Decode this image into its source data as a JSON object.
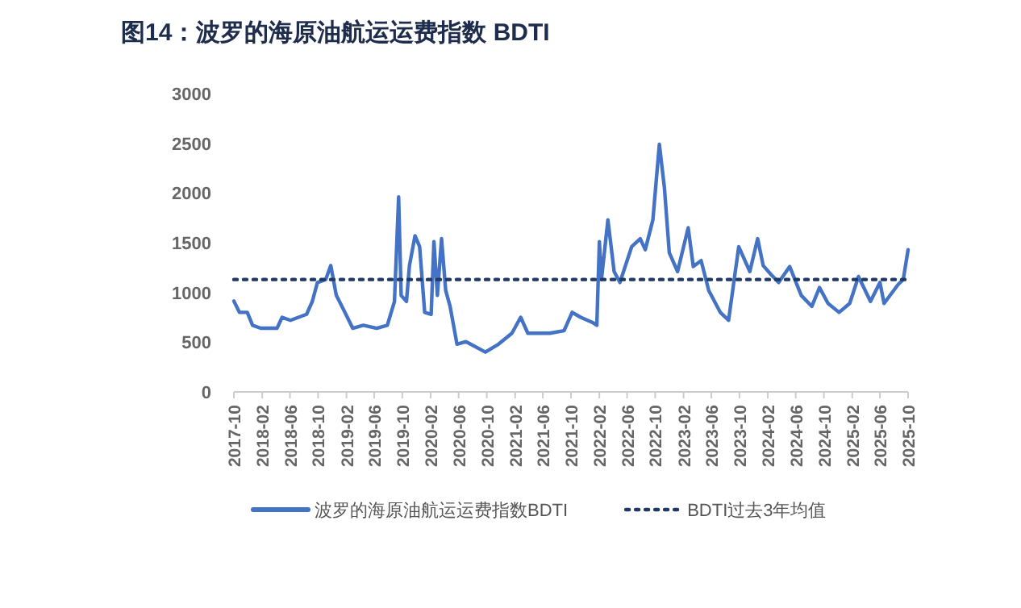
{
  "chart_data": {
    "type": "line",
    "title": "图14：波罗的海原油航运运费指数 BDTI",
    "series": [
      {
        "name": "波罗的海原油航运运费指数BDTI",
        "color": "#4472c4",
        "line_style": "solid",
        "x": [
          "2017-10-01",
          "2017-10-25",
          "2017-11-28",
          "2017-12-21",
          "2018-01-25",
          "2018-04-06",
          "2018-04-28",
          "2018-06-03",
          "2018-08-12",
          "2018-09-06",
          "2018-09-28",
          "2018-11-03",
          "2018-11-25",
          "2018-12-19",
          "2019-01-25",
          "2019-02-28",
          "2019-04-15",
          "2019-06-12",
          "2019-07-28",
          "2019-08-28",
          "2019-09-15",
          "2019-09-26",
          "2019-10-19",
          "2019-11-01",
          "2019-11-25",
          "2019-12-15",
          "2020-01-06",
          "2020-02-03",
          "2020-02-15",
          "2020-03-01",
          "2020-03-19",
          "2020-04-06",
          "2020-04-25",
          "2020-05-25",
          "2020-07-03",
          "2020-09-25",
          "2020-11-21",
          "2021-01-18",
          "2021-02-25",
          "2021-03-28",
          "2021-07-01",
          "2021-09-01",
          "2021-10-06",
          "2021-11-12",
          "2022-01-01",
          "2022-01-21",
          "2022-02-01",
          "2022-02-10",
          "2022-03-10",
          "2022-04-06",
          "2022-05-01",
          "2022-06-21",
          "2022-07-28",
          "2022-08-19",
          "2022-09-21",
          "2022-10-19",
          "2022-11-10",
          "2022-12-01",
          "2023-01-06",
          "2023-02-21",
          "2023-03-15",
          "2023-04-18",
          "2023-05-21",
          "2023-07-10",
          "2023-08-15",
          "2023-09-28",
          "2023-11-15",
          "2023-12-19",
          "2024-01-12",
          "2024-02-15",
          "2024-03-19",
          "2024-05-06",
          "2024-06-25",
          "2024-08-10",
          "2024-09-12",
          "2024-10-19",
          "2024-12-06",
          "2025-01-21",
          "2025-02-28",
          "2025-04-21",
          "2025-06-01",
          "2025-06-19",
          "2025-08-19",
          "2025-09-10",
          "2025-10-01"
        ],
        "values": [
          913,
          800,
          800,
          670,
          640,
          640,
          750,
          720,
          780,
          910,
          1100,
          1130,
          1270,
          970,
          800,
          640,
          670,
          640,
          670,
          910,
          1960,
          970,
          910,
          1270,
          1570,
          1460,
          800,
          780,
          1510,
          970,
          1540,
          1020,
          860,
          480,
          505,
          400,
          480,
          590,
          750,
          590,
          590,
          615,
          800,
          750,
          700,
          670,
          1510,
          1130,
          1730,
          1210,
          1100,
          1460,
          1540,
          1430,
          1730,
          2490,
          2050,
          1400,
          1210,
          1650,
          1260,
          1320,
          1020,
          800,
          720,
          1460,
          1210,
          1540,
          1270,
          1180,
          1100,
          1260,
          970,
          860,
          1050,
          890,
          800,
          890,
          1160,
          910,
          1100,
          890,
          1080,
          1130,
          1430
        ]
      }
    ],
    "ref_lines": [
      {
        "axis": "y",
        "value": 1130,
        "label": "BDTI过去3年均值",
        "color": "#203864",
        "line_style": "dotted"
      }
    ],
    "xlim": [
      "2017-10-01",
      "2025-10-01"
    ],
    "xticks": [
      "2017-10",
      "2018-02",
      "2018-06",
      "2018-10",
      "2019-02",
      "2019-06",
      "2019-10",
      "2020-02",
      "2020-06",
      "2020-10",
      "2021-02",
      "2021-06",
      "2021-10",
      "2022-02",
      "2022-06",
      "2022-10",
      "2023-02",
      "2023-06",
      "2023-10",
      "2024-02",
      "2024-06",
      "2024-10",
      "2025-02",
      "2025-06",
      "2025-10"
    ],
    "ylim": [
      0,
      3000
    ],
    "yticks": [
      0,
      500,
      1000,
      1500,
      2000,
      2500,
      3000
    ],
    "grid": false,
    "legend": "bottom",
    "marker": "none"
  }
}
